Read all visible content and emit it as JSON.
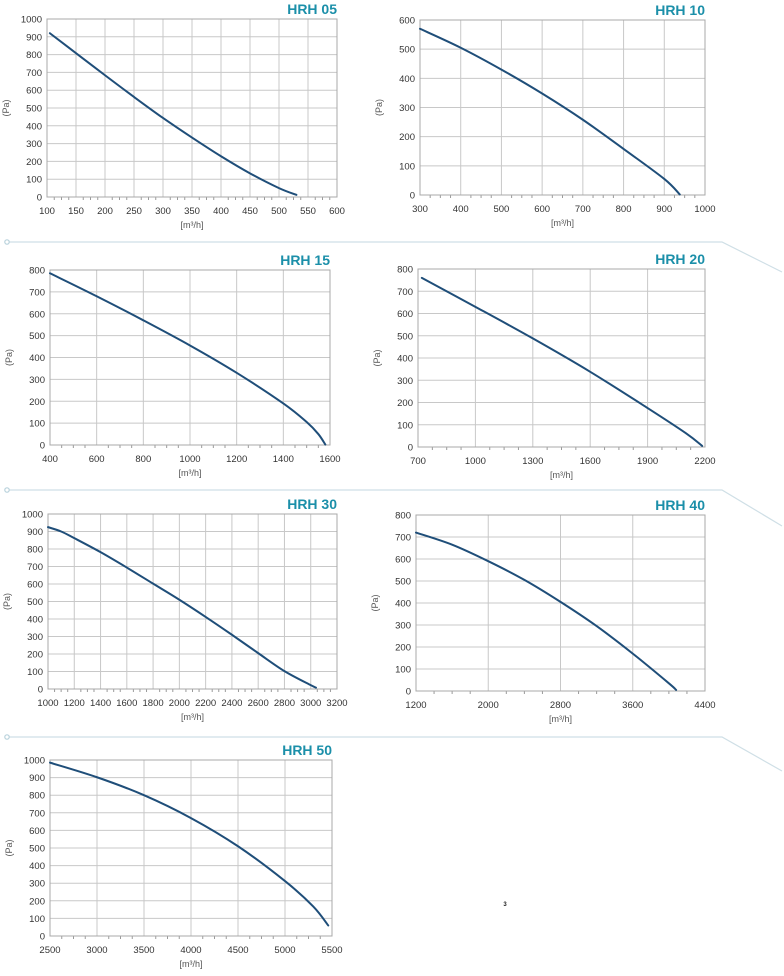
{
  "page_number": "3",
  "colors": {
    "curve": "#1f4e79",
    "title": "#1b8fa9"
  },
  "chart_data": [
    {
      "type": "line",
      "title": "HRH 05",
      "xlabel": "[m³/h]",
      "ylabel": "(Pa)",
      "xlim": [
        100,
        600
      ],
      "ylim": [
        0,
        1000
      ],
      "xticks": [
        100,
        150,
        200,
        250,
        300,
        350,
        400,
        450,
        500,
        550,
        600
      ],
      "yticks": [
        0,
        100,
        200,
        300,
        400,
        500,
        600,
        700,
        800,
        900,
        1000
      ],
      "grid": true,
      "series": [
        {
          "x": [
            105,
            150,
            200,
            250,
            300,
            350,
            400,
            450,
            500,
            530
          ],
          "y": [
            920,
            808,
            684,
            562,
            444,
            334,
            229,
            133,
            50,
            12
          ]
        }
      ]
    },
    {
      "type": "line",
      "title": "HRH 10",
      "xlabel": "[m³/h]",
      "ylabel": "(Pa)",
      "xlim": [
        300,
        1000
      ],
      "ylim": [
        0,
        600
      ],
      "xticks": [
        300,
        400,
        500,
        600,
        700,
        800,
        900,
        1000
      ],
      "yticks": [
        0,
        100,
        200,
        300,
        400,
        500,
        600
      ],
      "grid": true,
      "series": [
        {
          "x": [
            300,
            400,
            500,
            600,
            700,
            800,
            900,
            938
          ],
          "y": [
            570,
            505,
            430,
            348,
            258,
            158,
            55,
            2
          ]
        }
      ]
    },
    {
      "type": "line",
      "title": "HRH 15",
      "xlabel": "[m³/h]",
      "ylabel": "(Pa)",
      "xlim": [
        400,
        1600
      ],
      "ylim": [
        0,
        800
      ],
      "xticks": [
        400,
        600,
        800,
        1000,
        1200,
        1400,
        1600
      ],
      "yticks": [
        0,
        100,
        200,
        300,
        400,
        500,
        600,
        700,
        800
      ],
      "grid": true,
      "series": [
        {
          "x": [
            400,
            600,
            800,
            1000,
            1200,
            1400,
            1500,
            1550,
            1580
          ],
          "y": [
            785,
            680,
            570,
            455,
            330,
            190,
            105,
            50,
            2
          ]
        }
      ]
    },
    {
      "type": "line",
      "title": "HRH 20",
      "xlabel": "[m³/h]",
      "ylabel": "(Pa)",
      "xlim": [
        700,
        2200
      ],
      "ylim": [
        0,
        800
      ],
      "xticks": [
        700,
        1000,
        1300,
        1600,
        1900,
        2200
      ],
      "yticks": [
        0,
        100,
        200,
        300,
        400,
        500,
        600,
        700,
        800
      ],
      "grid": true,
      "series": [
        {
          "x": [
            720,
            1000,
            1300,
            1600,
            1900,
            2100,
            2185
          ],
          "y": [
            760,
            630,
            488,
            338,
            175,
            62,
            5
          ]
        }
      ]
    },
    {
      "type": "line",
      "title": "HRH 30",
      "xlabel": "[m³/h]",
      "ylabel": "(Pa)",
      "xlim": [
        1000,
        3200
      ],
      "ylim": [
        0,
        1000
      ],
      "xticks": [
        1000,
        1200,
        1400,
        1600,
        1800,
        2000,
        2200,
        2400,
        2600,
        2800,
        3000,
        3200
      ],
      "yticks": [
        0,
        100,
        200,
        300,
        400,
        500,
        600,
        700,
        800,
        900,
        1000
      ],
      "grid": true,
      "series": [
        {
          "x": [
            1000,
            1100,
            1200,
            1400,
            1600,
            1800,
            2000,
            2200,
            2400,
            2600,
            2800,
            3000,
            3040
          ],
          "y": [
            925,
            900,
            862,
            782,
            694,
            602,
            510,
            412,
            310,
            205,
            102,
            22,
            8
          ]
        }
      ]
    },
    {
      "type": "line",
      "title": "HRH 40",
      "xlabel": "[m³/h]",
      "ylabel": "(Pa)",
      "xlim": [
        1200,
        4400
      ],
      "ylim": [
        0,
        800
      ],
      "xticks": [
        1200,
        2000,
        2800,
        3600,
        4400
      ],
      "yticks": [
        0,
        100,
        200,
        300,
        400,
        500,
        600,
        700,
        800
      ],
      "grid": true,
      "series": [
        {
          "x": [
            1200,
            1600,
            2000,
            2400,
            2800,
            3200,
            3600,
            4000,
            4080
          ],
          "y": [
            720,
            665,
            590,
            505,
            405,
            295,
            170,
            35,
            5
          ]
        }
      ]
    },
    {
      "type": "line",
      "title": "HRH 50",
      "xlabel": "[m³/h]",
      "ylabel": "(Pa)",
      "xlim": [
        2500,
        5500
      ],
      "ylim": [
        0,
        1000
      ],
      "xticks": [
        2500,
        3000,
        3500,
        4000,
        4500,
        5000,
        5500
      ],
      "yticks": [
        0,
        100,
        200,
        300,
        400,
        500,
        600,
        700,
        800,
        900,
        1000
      ],
      "grid": true,
      "series": [
        {
          "x": [
            2500,
            3000,
            3500,
            4000,
            4500,
            5000,
            5300,
            5460
          ],
          "y": [
            985,
            902,
            800,
            670,
            510,
            312,
            168,
            60
          ]
        }
      ]
    }
  ]
}
